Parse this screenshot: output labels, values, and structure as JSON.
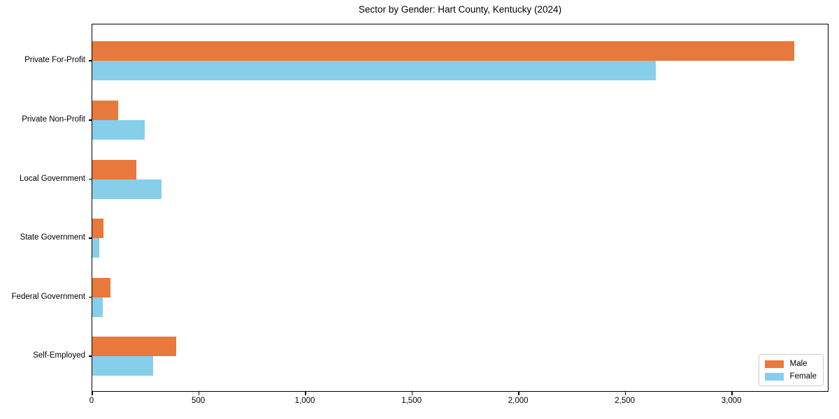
{
  "chart_data": {
    "type": "bar",
    "orientation": "horizontal",
    "title": "Sector by Gender: Hart County, Kentucky (2024)",
    "categories": [
      "Private For-Profit",
      "Private Non-Profit",
      "Local Government",
      "State Government",
      "Federal Government",
      "Self-Employed"
    ],
    "series": [
      {
        "name": "Male",
        "color": "#e8793c",
        "values": [
          3290,
          122,
          207,
          52,
          86,
          392
        ]
      },
      {
        "name": "Female",
        "color": "#87ceeb",
        "values": [
          2642,
          245,
          323,
          32,
          48,
          286
        ]
      }
    ],
    "xlabel": "",
    "ylabel": "",
    "xlim": [
      0,
      3455
    ],
    "xticks": [
      0,
      500,
      1000,
      1500,
      2000,
      2500,
      3000
    ],
    "xtick_labels": [
      "0",
      "500",
      "1,000",
      "1,500",
      "2,000",
      "2,500",
      "3,000"
    ],
    "grid": false,
    "legend_position": "lower right",
    "axis_color": "#000000"
  }
}
